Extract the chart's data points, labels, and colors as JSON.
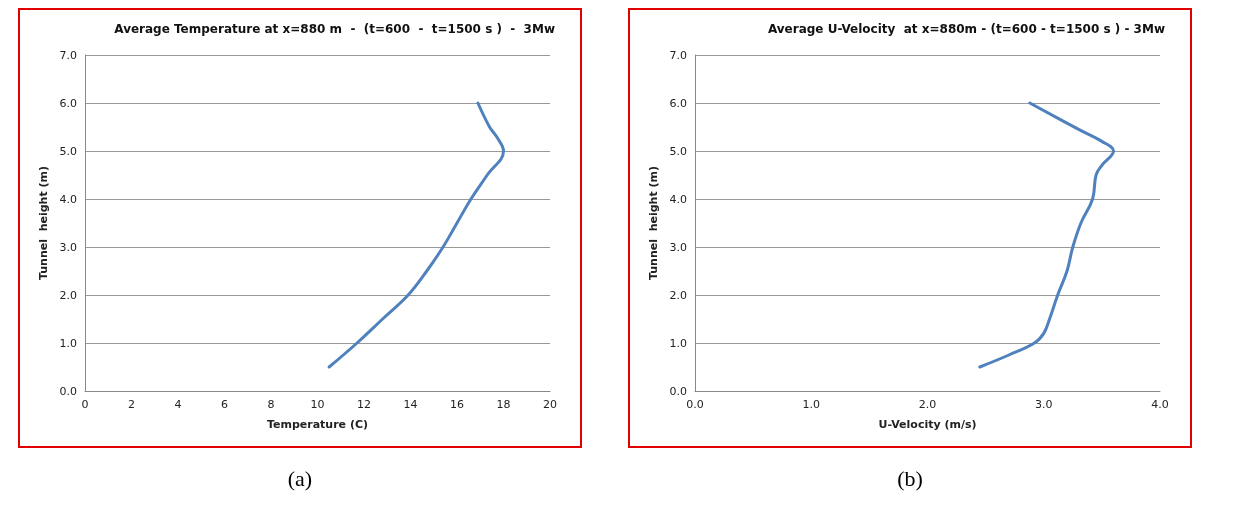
{
  "chart_data": [
    {
      "type": "line",
      "title": "Average Temperature at x=880 m  -  (t=600  -  t=1500 s )  -  3Mw",
      "xlabel": "Temperature (C)",
      "ylabel": "Tunnel  height (m)",
      "annotations": [
        "(a)"
      ],
      "x": [
        10.5,
        11.7,
        12.8,
        13.9,
        14.7,
        15.4,
        16.0,
        16.6,
        17.3,
        18.0,
        17.7,
        17.4,
        16.9
      ],
      "series": [
        {
          "color": "#4f81bd",
          "values": [
            0.5,
            1.0,
            1.5,
            2.0,
            2.5,
            3.0,
            3.5,
            4.0,
            4.5,
            5.0,
            5.3,
            5.5,
            6.0
          ]
        }
      ],
      "xlim": [
        0,
        20
      ],
      "xticks": [
        0,
        2,
        4,
        6,
        8,
        10,
        12,
        14,
        16,
        18,
        20
      ],
      "ylim": [
        0,
        7
      ],
      "yticks": [
        {
          "value": 0,
          "label": "0.0"
        },
        {
          "value": 1,
          "label": "1.0"
        },
        {
          "value": 2,
          "label": "2.0"
        },
        {
          "value": 3,
          "label": "3.0"
        },
        {
          "value": 4,
          "label": "4.0"
        },
        {
          "value": 5,
          "label": "5.0"
        },
        {
          "value": 6,
          "label": "6.0"
        },
        {
          "value": 7,
          "label": "7.0"
        }
      ],
      "grid": "y"
    },
    {
      "type": "line",
      "title": "Average U-Velocity  at x=880m - (t=600 - t=1500 s ) - 3Mw",
      "xlabel": "U-Velocity (m/s)",
      "ylabel": "Tunnel  height (m)",
      "annotations": [
        "(b)"
      ],
      "x": [
        2.45,
        2.7,
        2.92,
        3.0,
        3.05,
        3.12,
        3.2,
        3.25,
        3.32,
        3.42,
        3.45,
        3.5,
        3.6,
        3.5,
        3.3,
        2.88
      ],
      "series": [
        {
          "color": "#4f81bd",
          "values": [
            0.5,
            0.75,
            1.0,
            1.2,
            1.5,
            2.0,
            2.5,
            3.0,
            3.5,
            4.0,
            4.5,
            4.7,
            5.0,
            5.2,
            5.45,
            6.0
          ]
        }
      ],
      "xlim": [
        0,
        4
      ],
      "xticks": [
        {
          "value": 0,
          "label": "0.0"
        },
        {
          "value": 1,
          "label": "1.0"
        },
        {
          "value": 2,
          "label": "2.0"
        },
        {
          "value": 3,
          "label": "3.0"
        },
        {
          "value": 4,
          "label": "4.0"
        }
      ],
      "ylim": [
        0,
        7
      ],
      "yticks": [
        {
          "value": 0,
          "label": "0.0"
        },
        {
          "value": 1,
          "label": "1.0"
        },
        {
          "value": 2,
          "label": "2.0"
        },
        {
          "value": 3,
          "label": "3.0"
        },
        {
          "value": 4,
          "label": "4.0"
        },
        {
          "value": 5,
          "label": "5.0"
        },
        {
          "value": 6,
          "label": "6.0"
        },
        {
          "value": 7,
          "label": "7.0"
        }
      ],
      "grid": "y"
    }
  ]
}
